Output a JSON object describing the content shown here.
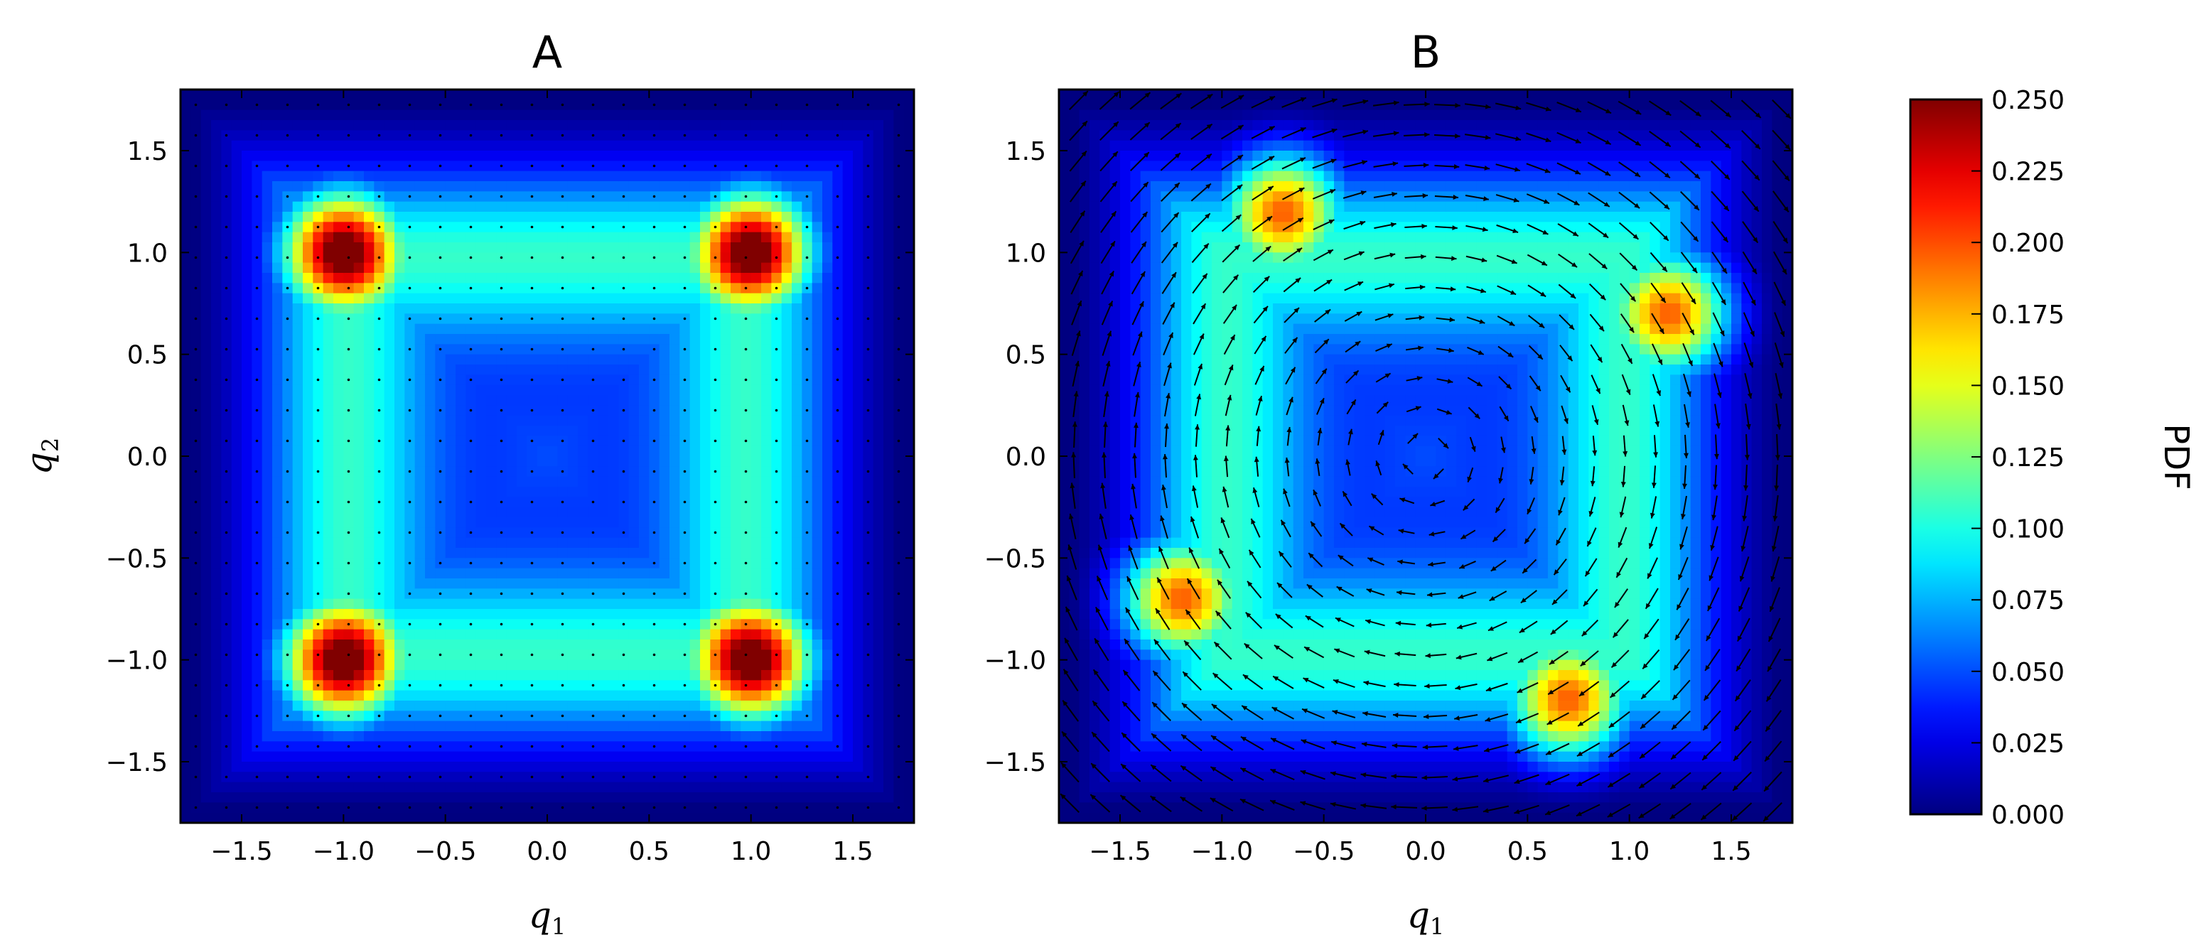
{
  "chart_data": [
    {
      "type": "heatmap",
      "title": "A",
      "xlabel": "q",
      "xlabel_sub": "1",
      "ylabel": "q",
      "ylabel_sub": "2",
      "xlim": [
        -1.8,
        1.8
      ],
      "ylim": [
        -1.8,
        1.8
      ],
      "xticks": [
        -1.5,
        -1.0,
        -0.5,
        0.0,
        0.5,
        1.0,
        1.5
      ],
      "xtick_labels": [
        "−1.5",
        "−1.0",
        "−0.5",
        "0.0",
        "0.5",
        "1.0",
        "1.5"
      ],
      "yticks": [
        -1.5,
        -1.0,
        -0.5,
        0.0,
        0.5,
        1.0,
        1.5
      ],
      "ytick_labels": [
        "−1.5",
        "−1.0",
        "−0.5",
        "0.0",
        "0.5",
        "1.0",
        "1.5"
      ],
      "density_peaks": [
        {
          "q1": -1.0,
          "q2": 1.0,
          "pdf": 0.25
        },
        {
          "q1": 1.0,
          "q2": 1.0,
          "pdf": 0.25
        },
        {
          "q1": -1.0,
          "q2": -1.0,
          "pdf": 0.25
        },
        {
          "q1": 1.0,
          "q2": -1.0,
          "pdf": 0.25
        }
      ],
      "density_at_origin": 0.04,
      "vector_field": "negligible (dots only)",
      "vector_rotation": 0.0
    },
    {
      "type": "heatmap",
      "title": "B",
      "xlabel": "q",
      "xlabel_sub": "1",
      "ylabel": "",
      "xlim": [
        -1.8,
        1.8
      ],
      "ylim": [
        -1.8,
        1.8
      ],
      "xticks": [
        -1.5,
        -1.0,
        -0.5,
        0.0,
        0.5,
        1.0,
        1.5
      ],
      "xtick_labels": [
        "−1.5",
        "−1.0",
        "−0.5",
        "0.0",
        "0.5",
        "1.0",
        "1.5"
      ],
      "yticks": [
        -1.5,
        -1.0,
        -0.5,
        0.0,
        0.5,
        1.0,
        1.5
      ],
      "ytick_labels": [
        "−1.5",
        "−1.0",
        "−0.5",
        "0.0",
        "0.5",
        "1.0",
        "1.5"
      ],
      "density_peaks": [
        {
          "q1": -0.7,
          "q2": 1.2,
          "pdf": 0.18
        },
        {
          "q1": 1.2,
          "q2": 0.7,
          "pdf": 0.18
        },
        {
          "q1": -1.2,
          "q2": -0.7,
          "pdf": 0.18
        },
        {
          "q1": 0.7,
          "q2": -1.2,
          "pdf": 0.18
        }
      ],
      "density_at_origin": 0.04,
      "vector_field": "clockwise circulation around the origin",
      "vector_rotation": 0.6
    }
  ],
  "colorbar": {
    "label": "PDF",
    "colormap": "jet",
    "range": [
      0.0,
      0.25
    ],
    "ticks": [
      "0.000",
      "0.025",
      "0.050",
      "0.075",
      "0.100",
      "0.125",
      "0.150",
      "0.175",
      "0.200",
      "0.225",
      "0.250"
    ]
  }
}
